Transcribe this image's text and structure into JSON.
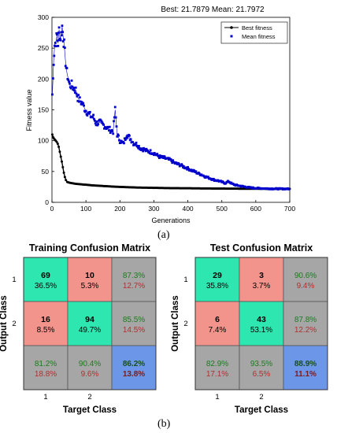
{
  "figure_a": {
    "panel_label": "(a)",
    "chart_data": {
      "type": "scatter",
      "title": "Best: 21.7879 Mean: 21.7972",
      "xlabel": "Generations",
      "ylabel": "Fitness value",
      "xlim": [
        0,
        700
      ],
      "ylim": [
        0,
        300
      ],
      "xticks": [
        "0",
        "100",
        "200",
        "300",
        "400",
        "500",
        "600",
        "700"
      ],
      "yticks": [
        "0",
        "50",
        "100",
        "150",
        "200",
        "250",
        "300"
      ],
      "legend_position": "top-right",
      "grid": false,
      "series": [
        {
          "name": "Best fitness",
          "color": "#000000",
          "points": [
            [
              1,
              110
            ],
            [
              3,
              106
            ],
            [
              5,
              104
            ],
            [
              8,
              102
            ],
            [
              11,
              100
            ],
            [
              14,
              98
            ],
            [
              17,
              95
            ],
            [
              20,
              90
            ],
            [
              23,
              82
            ],
            [
              26,
              74
            ],
            [
              29,
              66
            ],
            [
              32,
              57
            ],
            [
              35,
              48
            ],
            [
              38,
              41
            ],
            [
              41,
              36
            ],
            [
              45,
              33
            ],
            [
              50,
              32
            ],
            [
              60,
              31
            ],
            [
              70,
              30
            ],
            [
              80,
              29.5
            ],
            [
              100,
              28.5
            ],
            [
              120,
              27.5
            ],
            [
              150,
              26.5
            ],
            [
              180,
              25.5
            ],
            [
              200,
              25
            ],
            [
              250,
              24
            ],
            [
              300,
              23.5
            ],
            [
              350,
              23
            ],
            [
              400,
              22.8
            ],
            [
              450,
              22.5
            ],
            [
              500,
              22.3
            ],
            [
              550,
              22.1
            ],
            [
              600,
              22
            ],
            [
              650,
              21.9
            ],
            [
              700,
              21.79
            ]
          ]
        },
        {
          "name": "Mean fitness",
          "color": "#0000cc",
          "points": [
            [
              1,
              175
            ],
            [
              3,
              200
            ],
            [
              5,
              230
            ],
            [
              8,
              255
            ],
            [
              12,
              262
            ],
            [
              15,
              270
            ],
            [
              18,
              258
            ],
            [
              21,
              280
            ],
            [
              24,
              265
            ],
            [
              27,
              272
            ],
            [
              30,
              285
            ],
            [
              33,
              268
            ],
            [
              36,
              255
            ],
            [
              40,
              228
            ],
            [
              44,
              210
            ],
            [
              48,
              200
            ],
            [
              52,
              190
            ],
            [
              58,
              190
            ],
            [
              64,
              185
            ],
            [
              70,
              182
            ],
            [
              76,
              170
            ],
            [
              82,
              165
            ],
            [
              90,
              160
            ],
            [
              98,
              150
            ],
            [
              106,
              145
            ],
            [
              114,
              140
            ],
            [
              122,
              138
            ],
            [
              130,
              128
            ],
            [
              140,
              130
            ],
            [
              150,
              126
            ],
            [
              160,
              122
            ],
            [
              170,
              118
            ],
            [
              180,
              115
            ],
            [
              186,
              150
            ],
            [
              192,
              110
            ],
            [
              200,
              100
            ],
            [
              210,
              95
            ],
            [
              220,
              110
            ],
            [
              230,
              104
            ],
            [
              240,
              96
            ],
            [
              250,
              94
            ],
            [
              260,
              88
            ],
            [
              270,
              86
            ],
            [
              280,
              83
            ],
            [
              290,
              82
            ],
            [
              300,
              80
            ],
            [
              310,
              76
            ],
            [
              320,
              73
            ],
            [
              330,
              72
            ],
            [
              340,
              70
            ],
            [
              350,
              68
            ],
            [
              360,
              64
            ],
            [
              370,
              62
            ],
            [
              380,
              60
            ],
            [
              390,
              57
            ],
            [
              400,
              55
            ],
            [
              410,
              52
            ],
            [
              420,
              50
            ],
            [
              430,
              47
            ],
            [
              440,
              45
            ],
            [
              450,
              42
            ],
            [
              460,
              40
            ],
            [
              470,
              38
            ],
            [
              480,
              36
            ],
            [
              490,
              35
            ],
            [
              500,
              33
            ],
            [
              510,
              31
            ],
            [
              520,
              34
            ],
            [
              530,
              30
            ],
            [
              540,
              28
            ],
            [
              550,
              27
            ],
            [
              560,
              26
            ],
            [
              570,
              25
            ],
            [
              580,
              24
            ],
            [
              590,
              23.5
            ],
            [
              600,
              23
            ],
            [
              620,
              22.6
            ],
            [
              640,
              22.2
            ],
            [
              660,
              22
            ],
            [
              680,
              21.9
            ],
            [
              700,
              21.8
            ]
          ]
        }
      ]
    }
  },
  "figure_b": {
    "panel_label": "(b)",
    "chart_data": [
      {
        "type": "heatmap",
        "title": "Training Confusion Matrix",
        "xlabel": "Target Class",
        "ylabel": "Output Class",
        "x_ticks": [
          "1",
          "2"
        ],
        "y_ticks": [
          "1",
          "2"
        ],
        "cells": [
          {
            "count": "69",
            "pct": "36.5%",
            "kind": "correct"
          },
          {
            "count": "10",
            "pct": "5.3%",
            "kind": "error"
          },
          {
            "top": "87.3%",
            "bottom": "12.7%",
            "kind": "summary"
          },
          {
            "count": "16",
            "pct": "8.5%",
            "kind": "error"
          },
          {
            "count": "94",
            "pct": "49.7%",
            "kind": "correct"
          },
          {
            "top": "85.5%",
            "bottom": "14.5%",
            "kind": "summary"
          },
          {
            "top": "81.2%",
            "bottom": "18.8%",
            "kind": "summary"
          },
          {
            "top": "90.4%",
            "bottom": "9.6%",
            "kind": "summary"
          },
          {
            "top": "86.2%",
            "bottom": "13.8%",
            "kind": "overall"
          }
        ]
      },
      {
        "type": "heatmap",
        "title": "Test Confusion Matrix",
        "xlabel": "Target Class",
        "ylabel": "Output Class",
        "x_ticks": [
          "1",
          "2"
        ],
        "y_ticks": [
          "1",
          "2"
        ],
        "cells": [
          {
            "count": "29",
            "pct": "35.8%",
            "kind": "correct"
          },
          {
            "count": "3",
            "pct": "3.7%",
            "kind": "error"
          },
          {
            "top": "90.6%",
            "bottom": "9.4%",
            "kind": "summary"
          },
          {
            "count": "6",
            "pct": "7.4%",
            "kind": "error"
          },
          {
            "count": "43",
            "pct": "53.1%",
            "kind": "correct"
          },
          {
            "top": "87.8%",
            "bottom": "12.2%",
            "kind": "summary"
          },
          {
            "top": "82.9%",
            "bottom": "17.1%",
            "kind": "summary"
          },
          {
            "top": "93.5%",
            "bottom": "6.5%",
            "kind": "summary"
          },
          {
            "top": "88.9%",
            "bottom": "11.1%",
            "kind": "overall"
          }
        ]
      }
    ]
  },
  "colors": {
    "correct": "#2ee6b0",
    "error": "#f2948c",
    "summary": "#a6a6a6",
    "overall": "#6c96e8",
    "summary_top_text": "#1f7a1f",
    "summary_bottom_text": "#b03030",
    "overall_top_text": "#1a4f1a",
    "overall_bottom_text": "#7a1c1c"
  }
}
